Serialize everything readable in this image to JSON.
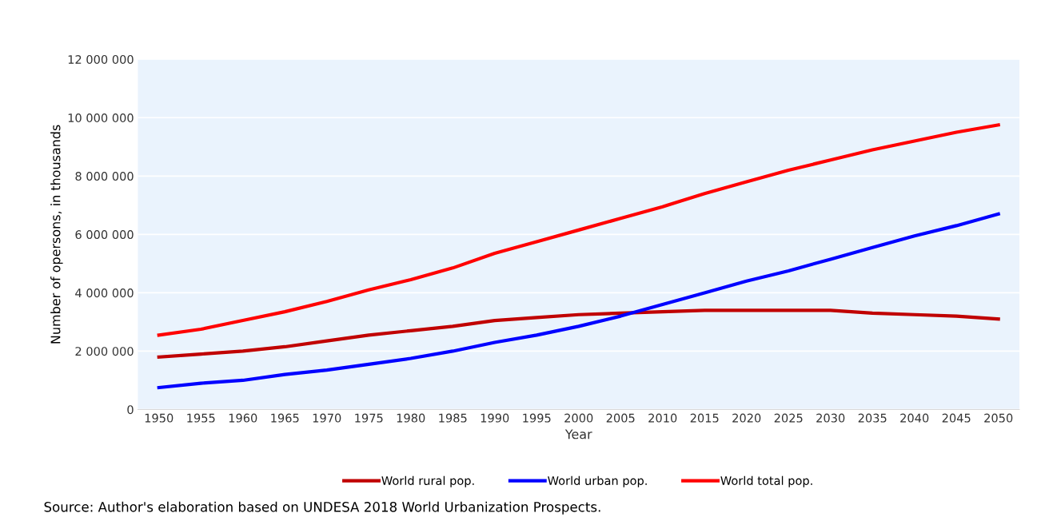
{
  "chart_data": {
    "type": "line",
    "xlabel": "Year",
    "ylabel": "Number of opersons, in thousands",
    "categories": [
      "1950",
      "1955",
      "1960",
      "1965",
      "1970",
      "1975",
      "1980",
      "1985",
      "1990",
      "1995",
      "2000",
      "2005",
      "2010",
      "2015",
      "2020",
      "2025",
      "2030",
      "2035",
      "2040",
      "2045",
      "2050"
    ],
    "series": [
      {
        "name": "World rural pop.",
        "color": "#c00000",
        "values": [
          1800000,
          1900000,
          2000000,
          2150000,
          2350000,
          2550000,
          2700000,
          2850000,
          3050000,
          3150000,
          3250000,
          3300000,
          3350000,
          3400000,
          3400000,
          3400000,
          3400000,
          3300000,
          3250000,
          3200000,
          3100000
        ]
      },
      {
        "name": "World urban pop.",
        "color": "#0000ff",
        "values": [
          750000,
          900000,
          1000000,
          1200000,
          1350000,
          1550000,
          1750000,
          2000000,
          2300000,
          2550000,
          2850000,
          3200000,
          3600000,
          4000000,
          4400000,
          4750000,
          5150000,
          5550000,
          5950000,
          6300000,
          6700000
        ]
      },
      {
        "name": "World total pop.",
        "color": "#ff0000",
        "values": [
          2550000,
          2750000,
          3050000,
          3350000,
          3700000,
          4100000,
          4450000,
          4850000,
          5350000,
          5750000,
          6150000,
          6550000,
          6950000,
          7400000,
          7800000,
          8200000,
          8550000,
          8900000,
          9200000,
          9500000,
          9750000
        ]
      }
    ],
    "ylim": [
      0,
      12000000
    ],
    "yticks": [
      0,
      {
        "value": 2000000,
        "label": "2 000 000"
      },
      {
        "value": 4000000,
        "label": "4 000 000"
      },
      {
        "value": 6000000,
        "label": "6 000 000"
      },
      {
        "value": 8000000,
        "label": "8 000 000"
      },
      {
        "value": 10000000,
        "label": "10 000 000"
      },
      {
        "value": 12000000,
        "label": "12 000 000"
      }
    ],
    "grid": "y",
    "legend": "bottom",
    "marker": "none",
    "line_style": "solid",
    "annotations": [
      "Source: Author's elaboration based on UNDESA 2018 World Urbanization Prospects."
    ]
  }
}
